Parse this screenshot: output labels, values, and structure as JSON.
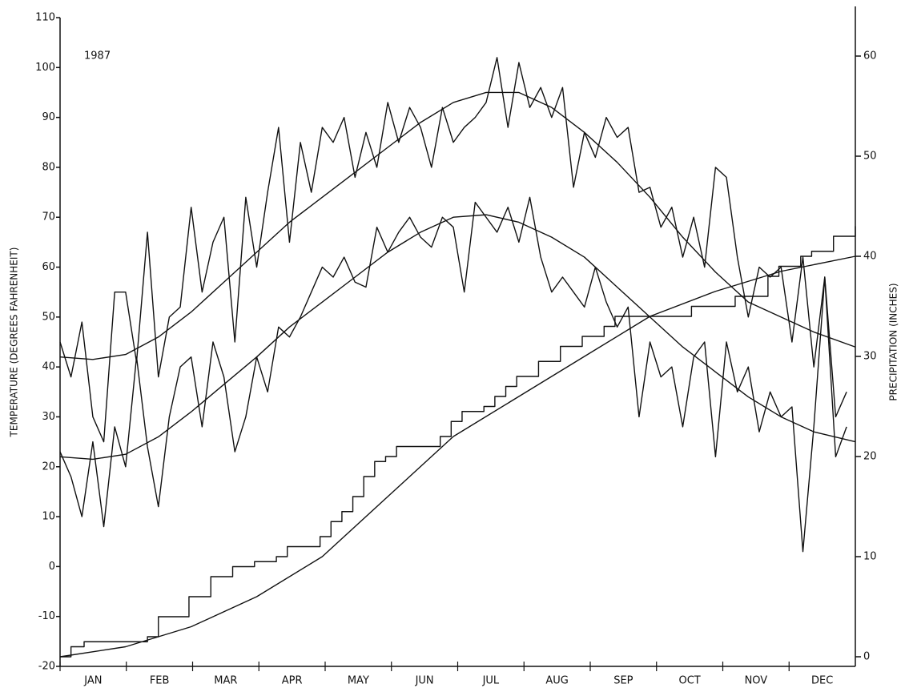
{
  "chart_data": {
    "type": "line",
    "annotation": "1987",
    "ylabel": "TEMPERATURE (DEGREES FAHRENHEIT)",
    "y2label": "PRECIPITATION (INCHES)",
    "categories": [
      "JAN",
      "FEB",
      "MAR",
      "APR",
      "MAY",
      "JUN",
      "JUL",
      "AUG",
      "SEP",
      "OCT",
      "NOV",
      "DEC"
    ],
    "xlim": [
      1,
      365
    ],
    "ylim": [
      -20,
      110
    ],
    "yticks": [
      -20,
      -10,
      0,
      10,
      20,
      30,
      40,
      50,
      60,
      70,
      80,
      90,
      100,
      110
    ],
    "y2lim": [
      -0.96,
      63.84
    ],
    "y2ticks": [
      0,
      10,
      20,
      30,
      40,
      50,
      60
    ],
    "series": [
      {
        "color": "#111",
        "x": [
          1,
          6,
          11,
          16,
          21,
          26,
          31,
          36,
          41,
          46,
          51,
          56,
          61,
          66,
          71,
          76,
          81,
          86,
          91,
          96,
          101,
          106,
          111,
          116,
          121,
          126,
          131,
          136,
          141,
          146,
          151,
          156,
          161,
          166,
          171,
          176,
          181,
          186,
          191,
          196,
          201,
          206,
          211,
          216,
          221,
          226,
          231,
          236,
          241,
          246,
          251,
          256,
          261,
          266,
          271,
          276,
          281,
          286,
          291,
          296,
          301,
          306,
          311,
          316,
          321,
          326,
          331,
          336,
          341,
          346,
          351,
          356,
          361
        ],
        "values": [
          45,
          38,
          49,
          30,
          25,
          55,
          55,
          41,
          67,
          38,
          50,
          52,
          72,
          55,
          65,
          70,
          45,
          74,
          60,
          75,
          88,
          65,
          85,
          75,
          88,
          85,
          90,
          78,
          87,
          80,
          93,
          85,
          92,
          88,
          80,
          92,
          85,
          88,
          90,
          93,
          102,
          88,
          101,
          92,
          96,
          90,
          96,
          76,
          87,
          82,
          90,
          86,
          88,
          75,
          76,
          68,
          72,
          62,
          70,
          60,
          80,
          78,
          62,
          50,
          60,
          58,
          60,
          45,
          62,
          40,
          58,
          30,
          35
        ]
      },
      {
        "color": "#111",
        "x": [
          1,
          6,
          11,
          16,
          21,
          26,
          31,
          36,
          41,
          46,
          51,
          56,
          61,
          66,
          71,
          76,
          81,
          86,
          91,
          96,
          101,
          106,
          111,
          116,
          121,
          126,
          131,
          136,
          141,
          146,
          151,
          156,
          161,
          166,
          171,
          176,
          181,
          186,
          191,
          196,
          201,
          206,
          211,
          216,
          221,
          226,
          231,
          236,
          241,
          246,
          251,
          256,
          261,
          266,
          271,
          276,
          281,
          286,
          291,
          296,
          301,
          306,
          311,
          316,
          321,
          326,
          331,
          336,
          341,
          346,
          351,
          356,
          361
        ],
        "values": [
          23,
          18,
          10,
          25,
          8,
          28,
          20,
          42,
          24,
          12,
          30,
          40,
          42,
          28,
          45,
          38,
          23,
          30,
          42,
          35,
          48,
          46,
          50,
          55,
          60,
          58,
          62,
          57,
          56,
          68,
          63,
          67,
          70,
          66,
          64,
          70,
          68,
          55,
          73,
          70,
          67,
          72,
          65,
          74,
          62,
          55,
          58,
          55,
          52,
          60,
          53,
          48,
          52,
          30,
          45,
          38,
          40,
          28,
          42,
          45,
          22,
          45,
          35,
          40,
          27,
          35,
          30,
          32,
          3,
          28,
          58,
          22,
          28
        ]
      },
      {
        "color": "#111",
        "x": [
          1,
          16,
          31,
          46,
          61,
          76,
          91,
          106,
          121,
          136,
          151,
          166,
          181,
          196,
          211,
          226,
          241,
          256,
          271,
          286,
          301,
          316,
          331,
          346,
          365
        ],
        "values": [
          42,
          41.5,
          42.5,
          46,
          51,
          57,
          63,
          69,
          74,
          79,
          84,
          89,
          93,
          95,
          95,
          92,
          87,
          81,
          74,
          66,
          59,
          53,
          50,
          47,
          44
        ]
      },
      {
        "color": "#111",
        "x": [
          1,
          16,
          31,
          46,
          61,
          76,
          91,
          106,
          121,
          136,
          151,
          166,
          181,
          196,
          211,
          226,
          241,
          256,
          271,
          286,
          301,
          316,
          331,
          346,
          365
        ],
        "values": [
          22,
          21.5,
          22.5,
          26,
          31,
          36.5,
          42,
          48,
          53,
          58,
          63,
          67,
          70,
          70.5,
          69,
          66,
          62,
          56,
          50,
          44,
          39,
          34,
          30,
          27,
          25
        ]
      },
      {
        "color": "#111",
        "axis": "y2",
        "drawstyle": "steps-post",
        "x": [
          1,
          6,
          12,
          41,
          46,
          60,
          70,
          80,
          90,
          100,
          105,
          120,
          125,
          130,
          135,
          140,
          145,
          150,
          155,
          175,
          180,
          185,
          195,
          200,
          205,
          210,
          220,
          230,
          240,
          250,
          255,
          290,
          310,
          325,
          330,
          340,
          345,
          355,
          365
        ],
        "values": [
          0,
          1,
          1.5,
          2,
          4,
          6,
          8,
          9,
          9.5,
          10,
          11,
          12,
          13.5,
          14.5,
          16,
          18,
          19.5,
          20,
          21,
          22,
          23.5,
          24.5,
          25,
          26,
          27,
          28,
          29.5,
          31,
          32,
          33,
          34,
          35,
          36,
          38,
          39,
          40,
          40.5,
          42,
          43
        ]
      },
      {
        "color": "#111",
        "axis": "y2",
        "x": [
          1,
          31,
          61,
          91,
          121,
          151,
          181,
          211,
          241,
          271,
          301,
          331,
          365
        ],
        "values": [
          0,
          1,
          3,
          6,
          10,
          16,
          22,
          26,
          30,
          34,
          36.5,
          38.5,
          40
        ]
      }
    ]
  }
}
